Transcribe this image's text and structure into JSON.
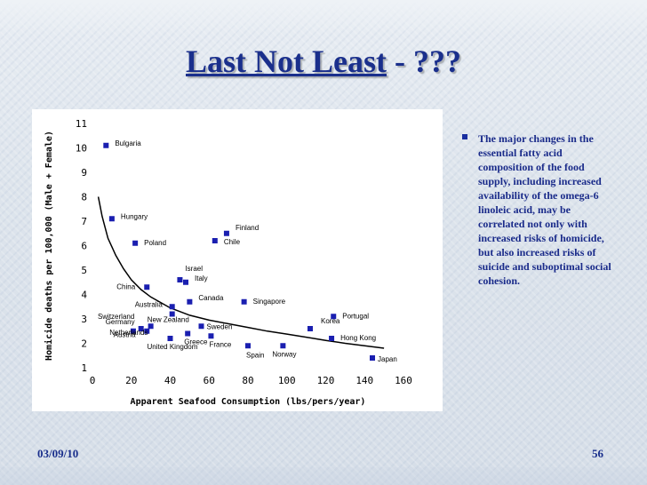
{
  "slide": {
    "title_main": "Last Not Least",
    "title_sep": " - ",
    "title_suffix": "???",
    "date": "03/09/10",
    "page_number": "56"
  },
  "bullet": {
    "text": "The major changes in the essential fatty acid composition of the food supply, including increased availability of the omega-6 linoleic acid, may be correlated not only with increased risks of homicide, but also increased risks of suicide and suboptimal social cohesion."
  },
  "chart_data": {
    "type": "scatter",
    "xlabel": "Apparent Seafood Consumption (lbs/pers/year)",
    "ylabel": "Homicide deaths per 100,000 (Male + Female)",
    "xlim": [
      0,
      160
    ],
    "ylim": [
      1,
      11
    ],
    "x_ticks": [
      0,
      20,
      40,
      60,
      80,
      100,
      120,
      140,
      160
    ],
    "y_ticks": [
      1,
      2,
      3,
      4,
      5,
      6,
      7,
      8,
      9,
      10,
      11
    ],
    "colors": {
      "marker": "#1a1fb0",
      "curve": "#000000"
    },
    "points": [
      {
        "label": "Bulgaria",
        "x": 7,
        "y": 10.1
      },
      {
        "label": "Hungary",
        "x": 10,
        "y": 7.1
      },
      {
        "label": "Poland",
        "x": 22,
        "y": 6.1
      },
      {
        "label": "China",
        "x": 28,
        "y": 4.3
      },
      {
        "label": "Finland",
        "x": 69,
        "y": 6.5
      },
      {
        "label": "Chile",
        "x": 63,
        "y": 6.2
      },
      {
        "label": "Israel",
        "x": 45,
        "y": 4.6
      },
      {
        "label": "Italy",
        "x": 48,
        "y": 4.5
      },
      {
        "label": "Canada",
        "x": 50,
        "y": 3.7
      },
      {
        "label": "Australia",
        "x": 41,
        "y": 3.5
      },
      {
        "label": "New Zealand",
        "x": 41,
        "y": 3.2
      },
      {
        "label": "Singapore",
        "x": 78,
        "y": 3.7
      },
      {
        "label": "Portugal",
        "x": 124,
        "y": 3.1
      },
      {
        "label": "Korea",
        "x": 112,
        "y": 2.6
      },
      {
        "label": "Hong Kong",
        "x": 123,
        "y": 2.2
      },
      {
        "label": "Japan",
        "x": 144,
        "y": 1.4
      },
      {
        "label": "Switzerland",
        "x": 21,
        "y": 2.5
      },
      {
        "label": "Germany",
        "x": 25,
        "y": 2.6
      },
      {
        "label": "Netherlands",
        "x": 28,
        "y": 2.5
      },
      {
        "label": "Austria",
        "x": 30,
        "y": 2.7
      },
      {
        "label": "United Kingdom",
        "x": 40,
        "y": 2.2
      },
      {
        "label": "Greece",
        "x": 49,
        "y": 2.4
      },
      {
        "label": "Sweden",
        "x": 56,
        "y": 2.7
      },
      {
        "label": "France",
        "x": 61,
        "y": 2.3
      },
      {
        "label": "Spain",
        "x": 80,
        "y": 1.9
      },
      {
        "label": "Norway",
        "x": 98,
        "y": 1.9
      }
    ],
    "fit_curve": {
      "label": "",
      "x": [
        3,
        5,
        8,
        12,
        16,
        20,
        25,
        30,
        40,
        50,
        60,
        70,
        80,
        90,
        100,
        110,
        120,
        130,
        140,
        150
      ],
      "y": [
        8.0,
        7.2,
        6.3,
        5.6,
        5.05,
        4.6,
        4.2,
        3.9,
        3.45,
        3.15,
        2.95,
        2.8,
        2.65,
        2.5,
        2.38,
        2.25,
        2.12,
        2.0,
        1.9,
        1.8
      ]
    }
  }
}
